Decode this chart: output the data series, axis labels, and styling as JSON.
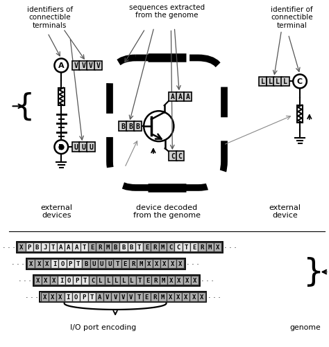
{
  "bg_color": "#ffffff",
  "fig_width": 4.74,
  "fig_height": 5.02,
  "labels": {
    "top_left": "identifiers of\nconnectible\nterminals",
    "top_center": "sequences extracted\nfrom the genome",
    "top_right": "identifier of\nconnectible\nterminal",
    "bot_left": "external\ndevices",
    "bot_center": "device decoded\nfrom the genome",
    "bot_right": "external\ndevice",
    "io_port": "I/O port encoding",
    "genome": "genome"
  },
  "seq_rows": [
    {
      "chars": "XPBJTAAATERMBBBTERMCCTERMX",
      "dark": [
        0,
        9,
        10,
        11,
        12,
        16,
        17,
        18,
        19,
        23,
        24,
        25
      ]
    },
    {
      "chars": "XXXIOPTBUUUTERMXXXXX",
      "dark": [
        0,
        1,
        2,
        7,
        8,
        9,
        10,
        11,
        12,
        13,
        14,
        15,
        16,
        17,
        18,
        19
      ]
    },
    {
      "chars": "XXXIOPTCLLLLLTERMXXXX",
      "dark": [
        0,
        1,
        2,
        7,
        8,
        9,
        10,
        11,
        12,
        13,
        14,
        15,
        16,
        17,
        18,
        19,
        20
      ]
    },
    {
      "chars": "XXXIOPTAVVVVTERMXXXXX",
      "dark": [
        0,
        1,
        2,
        7,
        8,
        9,
        10,
        11,
        12,
        13,
        14,
        15,
        16,
        17,
        18,
        19,
        20
      ]
    }
  ]
}
